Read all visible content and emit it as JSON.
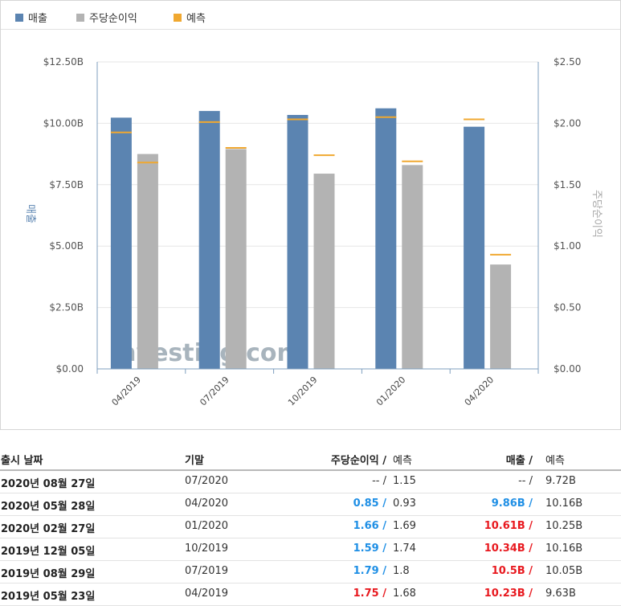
{
  "legend": [
    {
      "label": "매출",
      "color": "#5b84b1"
    },
    {
      "label": "주당순이익",
      "color": "#b3b3b3"
    },
    {
      "label": "예측",
      "color": "#f0a830"
    }
  ],
  "chart_data": {
    "type": "bar",
    "categories": [
      "04/2019",
      "07/2019",
      "10/2019",
      "01/2020",
      "04/2020"
    ],
    "series": [
      {
        "name": "매출",
        "axis": "left",
        "color": "#5b84b1",
        "values": [
          10.23,
          10.5,
          10.34,
          10.61,
          9.86
        ]
      },
      {
        "name": "주당순이익",
        "axis": "right",
        "color": "#b3b3b3",
        "values": [
          1.75,
          1.79,
          1.59,
          1.66,
          0.85
        ]
      }
    ],
    "forecasts": {
      "name": "예측",
      "color": "#f0a830",
      "revenue": [
        9.63,
        10.05,
        10.16,
        10.25,
        10.16
      ],
      "eps": [
        1.68,
        1.8,
        1.74,
        1.69,
        0.93
      ]
    },
    "ylabel_left": "매출",
    "ylabel_right": "주당순이익",
    "ylim_left": [
      0,
      12.5
    ],
    "ylim_right": [
      0,
      2.5
    ],
    "yticks_left": [
      "$0.00",
      "$2.50B",
      "$5.00B",
      "$7.50B",
      "$10.00B",
      "$12.50B"
    ],
    "yticks_right": [
      "$0.00",
      "$0.50",
      "$1.00",
      "$1.50",
      "$2.00",
      "$2.50"
    ],
    "grid": true
  },
  "watermark": "Investing.com",
  "table": {
    "headers": {
      "date": "출시 날짜",
      "period": "기말",
      "eps": "주당순이익 /",
      "eps_forecast": "예측",
      "revenue": "매출 /",
      "revenue_forecast": "예측"
    },
    "rows": [
      {
        "date": "2020년 08월 27일",
        "period": "07/2020",
        "eps": "-- /",
        "eps_class": "neutral",
        "eps_forecast": "1.15",
        "revenue": "-- /",
        "revenue_class": "neutral",
        "revenue_forecast": "9.72B"
      },
      {
        "date": "2020년 05월 28일",
        "period": "04/2020",
        "eps": "0.85 /",
        "eps_class": "pos",
        "eps_forecast": "0.93",
        "revenue": "9.86B /",
        "revenue_class": "pos",
        "revenue_forecast": "10.16B"
      },
      {
        "date": "2020년 02월 27일",
        "period": "01/2020",
        "eps": "1.66 /",
        "eps_class": "pos",
        "eps_forecast": "1.69",
        "revenue": "10.61B /",
        "revenue_class": "neg",
        "revenue_forecast": "10.25B"
      },
      {
        "date": "2019년 12월 05일",
        "period": "10/2019",
        "eps": "1.59 /",
        "eps_class": "pos",
        "eps_forecast": "1.74",
        "revenue": "10.34B /",
        "revenue_class": "neg",
        "revenue_forecast": "10.16B"
      },
      {
        "date": "2019년 08월 29일",
        "period": "07/2019",
        "eps": "1.79 /",
        "eps_class": "pos",
        "eps_forecast": "1.8",
        "revenue": "10.5B /",
        "revenue_class": "neg",
        "revenue_forecast": "10.05B"
      },
      {
        "date": "2019년 05월 23일",
        "period": "04/2019",
        "eps": "1.75 /",
        "eps_class": "neg",
        "eps_forecast": "1.68",
        "revenue": "10.23B /",
        "revenue_class": "neg",
        "revenue_forecast": "9.63B"
      }
    ]
  }
}
